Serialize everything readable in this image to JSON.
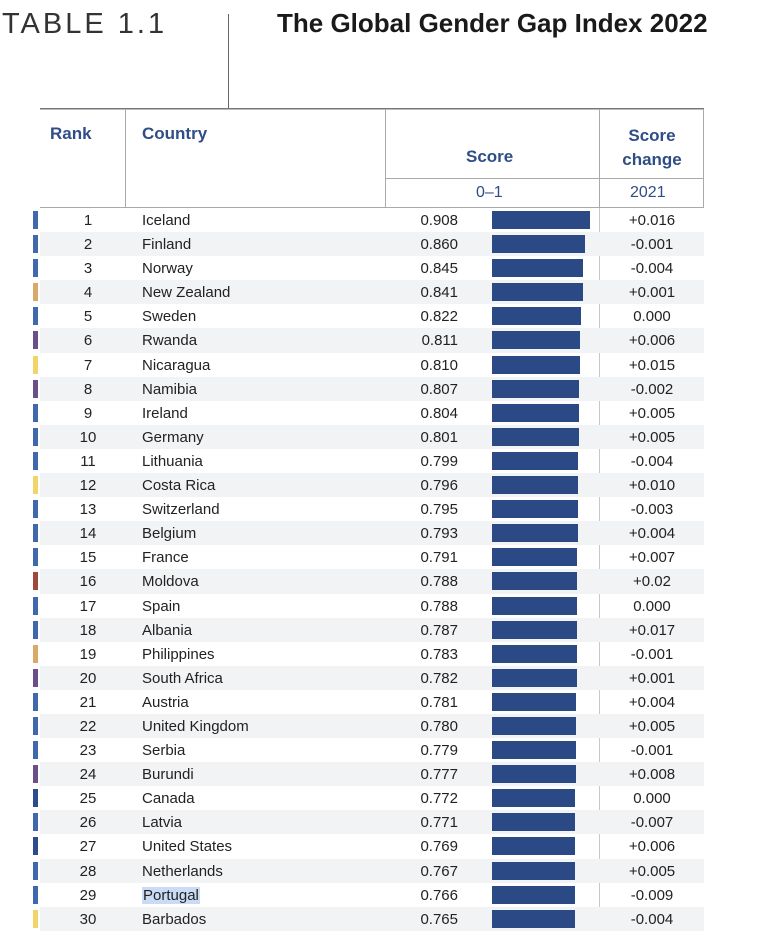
{
  "header": {
    "table_label": "TABLE 1.1",
    "title": "The Global Gender Gap Index 2022"
  },
  "columns": {
    "rank": "Rank",
    "country": "Country",
    "score": "Score",
    "score_change": "Score change",
    "score_range": "0–1",
    "change_year": "2021"
  },
  "colors": {
    "bar": "#2b4a85",
    "header_text": "#2f4d86",
    "region_blue": "#3f68ad",
    "region_tan": "#d9a96a",
    "region_purple": "#6b4f88",
    "region_yellow": "#f2d46b",
    "region_red": "#a0493a",
    "region_navy": "#2e4b8b",
    "highlight": "#c9dbf5"
  },
  "rows": [
    {
      "rank": "1",
      "country": "Iceland",
      "score": "0.908",
      "value": 0.908,
      "change": "+0.016",
      "region": "region_blue"
    },
    {
      "rank": "2",
      "country": "Finland",
      "score": "0.860",
      "value": 0.86,
      "change": "-0.001",
      "region": "region_blue"
    },
    {
      "rank": "3",
      "country": "Norway",
      "score": "0.845",
      "value": 0.845,
      "change": "-0.004",
      "region": "region_blue"
    },
    {
      "rank": "4",
      "country": "New Zealand",
      "score": "0.841",
      "value": 0.841,
      "change": "+0.001",
      "region": "region_tan"
    },
    {
      "rank": "5",
      "country": "Sweden",
      "score": "0.822",
      "value": 0.822,
      "change": "0.000",
      "region": "region_blue"
    },
    {
      "rank": "6",
      "country": "Rwanda",
      "score": "0.811",
      "value": 0.811,
      "change": "+0.006",
      "region": "region_purple"
    },
    {
      "rank": "7",
      "country": "Nicaragua",
      "score": "0.810",
      "value": 0.81,
      "change": "+0.015",
      "region": "region_yellow"
    },
    {
      "rank": "8",
      "country": "Namibia",
      "score": "0.807",
      "value": 0.807,
      "change": "-0.002",
      "region": "region_purple"
    },
    {
      "rank": "9",
      "country": "Ireland",
      "score": "0.804",
      "value": 0.804,
      "change": "+0.005",
      "region": "region_blue"
    },
    {
      "rank": "10",
      "country": "Germany",
      "score": "0.801",
      "value": 0.801,
      "change": "+0.005",
      "region": "region_blue"
    },
    {
      "rank": "11",
      "country": "Lithuania",
      "score": "0.799",
      "value": 0.799,
      "change": "-0.004",
      "region": "region_blue"
    },
    {
      "rank": "12",
      "country": "Costa Rica",
      "score": "0.796",
      "value": 0.796,
      "change": "+0.010",
      "region": "region_yellow"
    },
    {
      "rank": "13",
      "country": "Switzerland",
      "score": "0.795",
      "value": 0.795,
      "change": "-0.003",
      "region": "region_blue"
    },
    {
      "rank": "14",
      "country": "Belgium",
      "score": "0.793",
      "value": 0.793,
      "change": "+0.004",
      "region": "region_blue"
    },
    {
      "rank": "15",
      "country": "France",
      "score": "0.791",
      "value": 0.791,
      "change": "+0.007",
      "region": "region_blue"
    },
    {
      "rank": "16",
      "country": "Moldova",
      "score": "0.788",
      "value": 0.788,
      "change": "+0.02",
      "region": "region_red"
    },
    {
      "rank": "17",
      "country": "Spain",
      "score": "0.788",
      "value": 0.788,
      "change": "0.000",
      "region": "region_blue"
    },
    {
      "rank": "18",
      "country": "Albania",
      "score": "0.787",
      "value": 0.787,
      "change": "+0.017",
      "region": "region_blue"
    },
    {
      "rank": "19",
      "country": "Philippines",
      "score": "0.783",
      "value": 0.783,
      "change": "-0.001",
      "region": "region_tan"
    },
    {
      "rank": "20",
      "country": "South Africa",
      "score": "0.782",
      "value": 0.782,
      "change": "+0.001",
      "region": "region_purple"
    },
    {
      "rank": "21",
      "country": "Austria",
      "score": "0.781",
      "value": 0.781,
      "change": "+0.004",
      "region": "region_blue"
    },
    {
      "rank": "22",
      "country": "United Kingdom",
      "score": "0.780",
      "value": 0.78,
      "change": "+0.005",
      "region": "region_blue"
    },
    {
      "rank": "23",
      "country": "Serbia",
      "score": "0.779",
      "value": 0.779,
      "change": "-0.001",
      "region": "region_blue"
    },
    {
      "rank": "24",
      "country": "Burundi",
      "score": "0.777",
      "value": 0.777,
      "change": "+0.008",
      "region": "region_purple"
    },
    {
      "rank": "25",
      "country": "Canada",
      "score": "0.772",
      "value": 0.772,
      "change": "0.000",
      "region": "region_navy"
    },
    {
      "rank": "26",
      "country": "Latvia",
      "score": "0.771",
      "value": 0.771,
      "change": "-0.007",
      "region": "region_blue"
    },
    {
      "rank": "27",
      "country": "United States",
      "score": "0.769",
      "value": 0.769,
      "change": "+0.006",
      "region": "region_navy"
    },
    {
      "rank": "28",
      "country": "Netherlands",
      "score": "0.767",
      "value": 0.767,
      "change": "+0.005",
      "region": "region_blue"
    },
    {
      "rank": "29",
      "country": "Portugal",
      "score": "0.766",
      "value": 0.766,
      "change": "-0.009",
      "region": "region_blue",
      "highlighted": true
    },
    {
      "rank": "30",
      "country": "Barbados",
      "score": "0.765",
      "value": 0.765,
      "change": "-0.004",
      "region": "region_yellow"
    }
  ]
}
